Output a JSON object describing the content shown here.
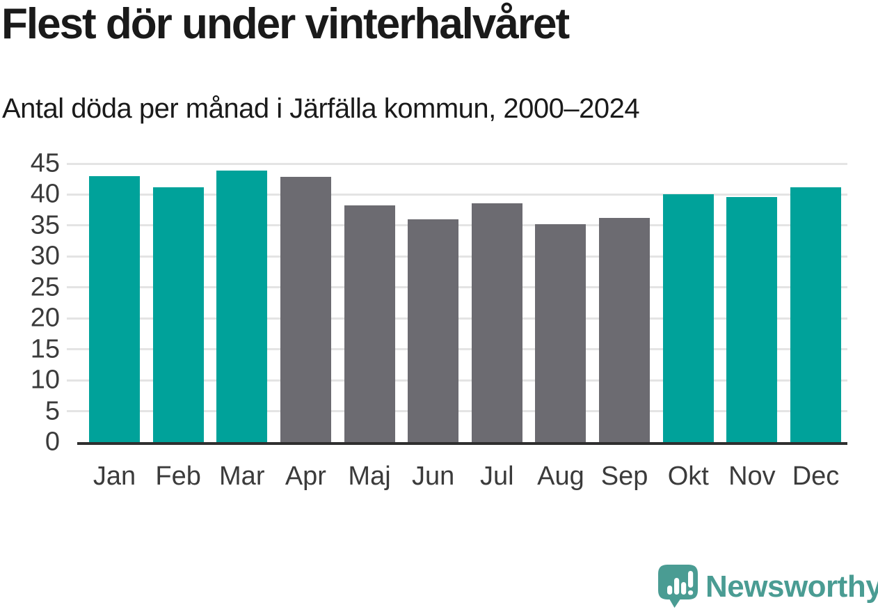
{
  "header": {
    "title": "Flest dör under vinterhalvåret",
    "subtitle": "Antal döda per månad i Järfälla kommun, 2000–2024"
  },
  "chart_data": {
    "type": "bar",
    "title": "Flest dör under vinterhalvåret",
    "subtitle": "Antal döda per månad i Järfälla kommun, 2000–2024",
    "categories": [
      "Jan",
      "Feb",
      "Mar",
      "Apr",
      "Maj",
      "Jun",
      "Jul",
      "Aug",
      "Sep",
      "Okt",
      "Nov",
      "Dec"
    ],
    "values": [
      43,
      41.2,
      43.9,
      42.9,
      38.2,
      36,
      38.6,
      35.2,
      36.2,
      40,
      39.6,
      41.2
    ],
    "bar_colors": [
      "#00a29a",
      "#00a29a",
      "#00a29a",
      "#6c6b71",
      "#6c6b71",
      "#6c6b71",
      "#6c6b71",
      "#6c6b71",
      "#6c6b71",
      "#00a29a",
      "#00a29a",
      "#00a29a"
    ],
    "xlabel": "",
    "ylabel": "",
    "ylim": [
      0,
      45
    ],
    "yticks": [
      0,
      5,
      10,
      15,
      20,
      25,
      30,
      35,
      40,
      45
    ],
    "grid": true,
    "legend": "none"
  },
  "branding": {
    "logo_text": "Newsworthy",
    "logo_color": "#4a9c93",
    "logo_icon": "speech-bubble-with-bar-chart-and-exclamation"
  },
  "colors": {
    "background": "#ffffff",
    "teal_bar": "#00a29a",
    "gray_bar": "#6c6b71",
    "gridline": "#e4e4e4",
    "axis_line": "#2f2f2f",
    "tick_label": "#3b3b3b",
    "title_text": "#1a1a1a"
  }
}
